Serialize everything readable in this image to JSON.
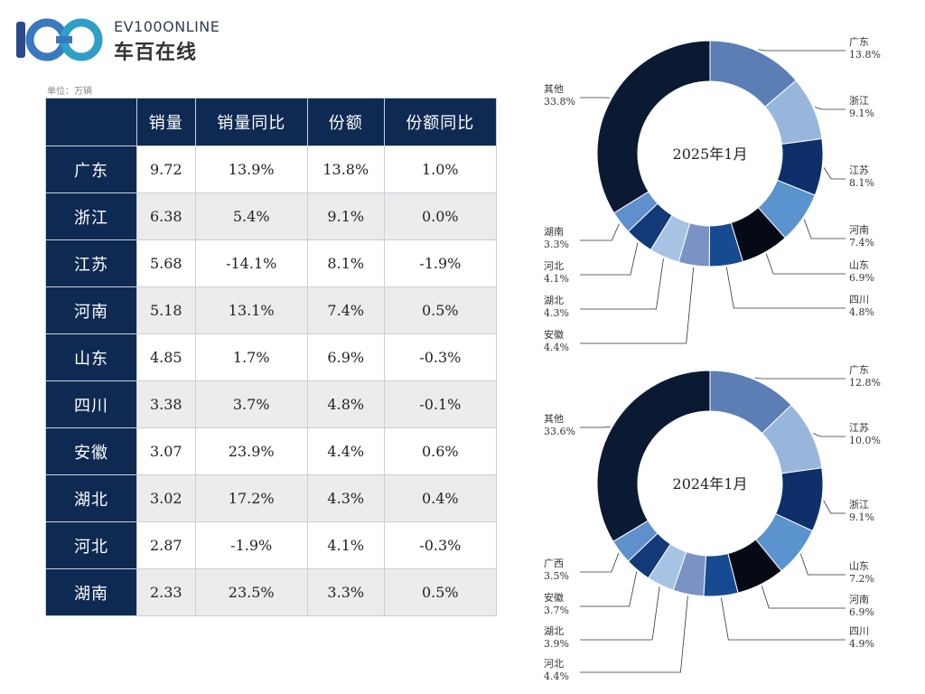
{
  "logo": {
    "brand": "EV100ONLINE",
    "cn": "车百在线"
  },
  "unit_note": "单位：万辆",
  "table": {
    "headers": [
      "",
      "销量",
      "销量同比",
      "份额",
      "份额同比"
    ],
    "rows": [
      [
        "广东",
        "9.72",
        "13.9%",
        "13.8%",
        "1.0%"
      ],
      [
        "浙江",
        "6.38",
        "5.4%",
        "9.1%",
        "0.0%"
      ],
      [
        "江苏",
        "5.68",
        "-14.1%",
        "8.1%",
        "-1.9%"
      ],
      [
        "河南",
        "5.18",
        "13.1%",
        "7.4%",
        "0.5%"
      ],
      [
        "山东",
        "4.85",
        "1.7%",
        "6.9%",
        "-0.3%"
      ],
      [
        "四川",
        "3.38",
        "3.7%",
        "4.8%",
        "-0.1%"
      ],
      [
        "安徽",
        "3.07",
        "23.9%",
        "4.4%",
        "0.6%"
      ],
      [
        "湖北",
        "3.02",
        "17.2%",
        "4.3%",
        "0.4%"
      ],
      [
        "河北",
        "2.87",
        "-1.9%",
        "4.1%",
        "-0.3%"
      ],
      [
        "湖南",
        "2.33",
        "23.5%",
        "3.3%",
        "0.5%"
      ]
    ]
  },
  "chart_data": [
    {
      "type": "pie",
      "title": "2025年1月",
      "slices": [
        {
          "label": "广东",
          "value": 13.8,
          "text": "13.8%",
          "color": "#5b7fb5"
        },
        {
          "label": "浙江",
          "value": 9.1,
          "text": "9.1%",
          "color": "#98b6dc"
        },
        {
          "label": "江苏",
          "value": 8.1,
          "text": "8.1%",
          "color": "#0f2f6a"
        },
        {
          "label": "河南",
          "value": 7.4,
          "text": "7.4%",
          "color": "#5b93cf"
        },
        {
          "label": "山东",
          "value": 6.9,
          "text": "6.9%",
          "color": "#050a14"
        },
        {
          "label": "四川",
          "value": 4.8,
          "text": "4.8%",
          "color": "#164a91"
        },
        {
          "label": "安徽",
          "value": 4.4,
          "text": "4.4%",
          "color": "#7b93c4"
        },
        {
          "label": "湖北",
          "value": 4.3,
          "text": "4.3%",
          "color": "#a7c3e3"
        },
        {
          "label": "河北",
          "value": 4.1,
          "text": "4.1%",
          "color": "#123a78"
        },
        {
          "label": "湖南",
          "value": 3.3,
          "text": "3.3%",
          "color": "#5f90cd"
        },
        {
          "label": "其他",
          "value": 33.8,
          "text": "33.8%",
          "color": "#0b1a33"
        }
      ]
    },
    {
      "type": "pie",
      "title": "2024年1月",
      "slices": [
        {
          "label": "广东",
          "value": 12.8,
          "text": "12.8%",
          "color": "#5b7fb5"
        },
        {
          "label": "江苏",
          "value": 10.0,
          "text": "10.0%",
          "color": "#98b6dc"
        },
        {
          "label": "浙江",
          "value": 9.1,
          "text": "9.1%",
          "color": "#0f2f6a"
        },
        {
          "label": "山东",
          "value": 7.2,
          "text": "7.2%",
          "color": "#5b93cf"
        },
        {
          "label": "河南",
          "value": 6.9,
          "text": "6.9%",
          "color": "#050a14"
        },
        {
          "label": "四川",
          "value": 4.9,
          "text": "4.9%",
          "color": "#164a91"
        },
        {
          "label": "河北",
          "value": 4.4,
          "text": "4.4%",
          "color": "#7b93c4"
        },
        {
          "label": "湖北",
          "value": 3.9,
          "text": "3.9%",
          "color": "#a7c3e3"
        },
        {
          "label": "安徽",
          "value": 3.7,
          "text": "3.7%",
          "color": "#123a78"
        },
        {
          "label": "广西",
          "value": 3.5,
          "text": "3.5%",
          "color": "#5f90cd"
        },
        {
          "label": "其他",
          "value": 33.6,
          "text": "33.6%",
          "color": "#0b1a33"
        }
      ]
    }
  ]
}
